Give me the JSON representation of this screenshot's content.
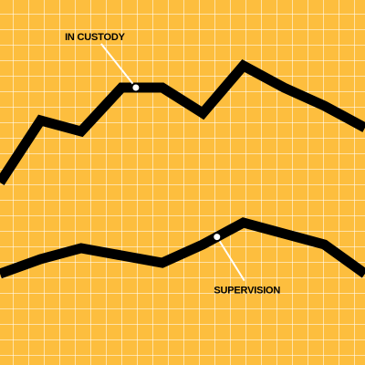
{
  "chart_data": {
    "type": "line",
    "x": [
      0,
      1,
      2,
      3,
      4,
      5,
      6,
      7,
      8,
      9
    ],
    "xlim": [
      0,
      9
    ],
    "ylim": [
      0,
      10
    ],
    "grid": true,
    "series": [
      {
        "name": "IN CUSTODY",
        "label_at": 3,
        "values": [
          5.0,
          6.7,
          6.4,
          7.6,
          7.6,
          6.9,
          8.2,
          7.6,
          7.1,
          6.5
        ]
      },
      {
        "name": "SUPERVISION",
        "label_at": 5,
        "values": [
          2.5,
          2.9,
          3.2,
          3.0,
          2.8,
          3.3,
          3.9,
          3.6,
          3.3,
          2.5
        ]
      }
    ],
    "colors": {
      "background": "#FDBE3E",
      "grid": "#FFFFFF",
      "line": "#000000",
      "marker": "#FFFFFF"
    }
  }
}
